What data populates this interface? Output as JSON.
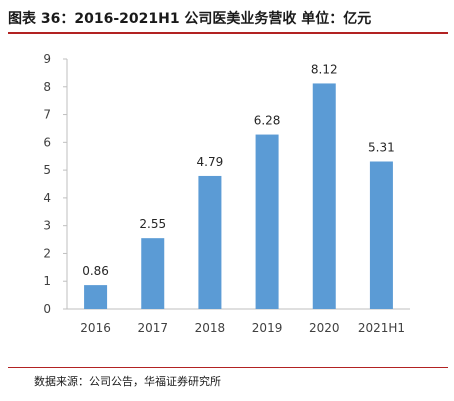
{
  "header": {
    "title": "图表 36：2016-2021H1 公司医美业务营收  单位：亿元"
  },
  "footer": {
    "source": "数据来源：公司公告，华福证券研究所"
  },
  "colors": {
    "bar": "#5b9bd5",
    "axis": "#bfbfbf",
    "accent_rule": "#b22222"
  },
  "chart_data": {
    "type": "bar",
    "title": "图表 36：2016-2021H1 公司医美业务营收  单位：亿元",
    "xlabel": "",
    "ylabel": "",
    "categories": [
      "2016",
      "2017",
      "2018",
      "2019",
      "2020",
      "2021H1"
    ],
    "values": [
      0.86,
      2.55,
      4.79,
      6.28,
      8.12,
      5.31
    ],
    "value_labels": [
      "0.86",
      "2.55",
      "4.79",
      "6.28",
      "8.12",
      "5.31"
    ],
    "ylim": [
      0,
      9
    ],
    "yticks": [
      0,
      1,
      2,
      3,
      4,
      5,
      6,
      7,
      8,
      9
    ],
    "grid": false,
    "legend": "none"
  }
}
